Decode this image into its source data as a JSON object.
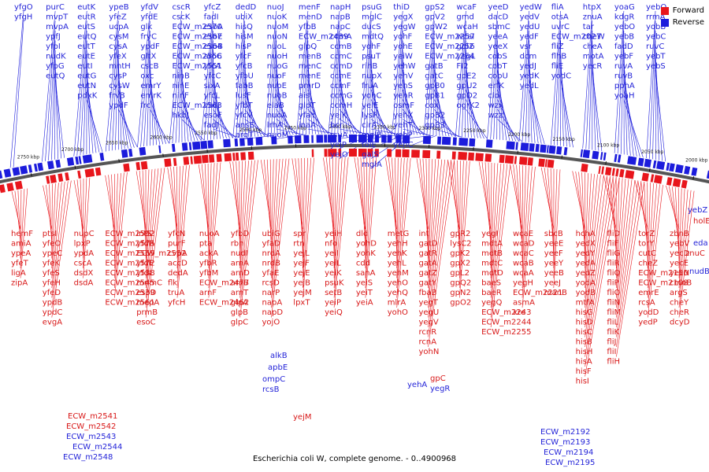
{
  "colors": {
    "forward": "#e8161c",
    "reverse": "#1c1cdc",
    "label_forward": "#d81818",
    "label_reverse": "#2424d8",
    "backbone": "#555555"
  },
  "legend": {
    "forward": "Forward",
    "reverse": "Reverse"
  },
  "caption": "Escherichia coli W, complete genome. - 0..4900968",
  "tick_labels": [
    "2750 kbp",
    "2700 kbp",
    "2650 kbp",
    "2600 kbp",
    "2550 kbp",
    "2500 kbp",
    "2450 kbp",
    "2400 kbp",
    "2350 kbp",
    "2300 kbp",
    "2250 kbp",
    "2200 kbp",
    "2150 kbp",
    "2100 kbp",
    "2050 kbp",
    "2000 kbp"
  ],
  "reverse_label_columns": [
    [
      "yfgO",
      "yfgH"
    ],
    [
      "purC",
      "mvpT",
      "mvpA",
      "ypfJ",
      "yfpI",
      "nudK",
      "yfpG",
      "eutQ"
    ],
    [
      "eutK",
      "eutR",
      "eutS",
      "eutQ",
      "eutT",
      "eutE",
      "eutI",
      "eutG",
      "eutN",
      "pdxK"
    ],
    [
      "ypeB",
      "yfeZ",
      "ucpA",
      "cysM",
      "cysA",
      "yfeX",
      "mntH",
      "cysP",
      "cysW",
      "frvB",
      "ypdF"
    ],
    [
      "yfdV",
      "yfdE",
      "glk",
      "fryC",
      "ypdF",
      "gltX",
      "cscB",
      "oxc",
      "emrY",
      "emrK",
      "frc"
    ],
    [
      "cscR",
      "cscK",
      "ECW_m2570",
      "ECW_m2567",
      "ECW_m2564",
      "ECW_m2556",
      "ECW_m2551",
      "ninB",
      "ninE",
      "ninF",
      "ECW_m2563",
      "hkbJ"
    ],
    [
      "yfcZ",
      "fadI",
      "esoA",
      "esoE",
      "esoB",
      "aroC",
      "yfcA",
      "yfcC",
      "sixA",
      "yfcL",
      "vacJ",
      "esoF",
      "fadJ"
    ],
    [
      "dedD",
      "ubiX",
      "hisQ",
      "hisM",
      "hisP",
      "yfcF",
      "yfcB",
      "yfbU",
      "fabB",
      "lusF",
      "yfbT",
      "yfcV",
      "ansE",
      "argT"
    ],
    [
      "nuoJ",
      "nuoK",
      "nuoM",
      "nuoN",
      "nuoL",
      "nuoH",
      "nuoG",
      "nuoF",
      "nuoE",
      "nuoB",
      "elaB",
      "nuoA",
      "lrhA",
      "nuoM"
    ],
    [
      "menF",
      "menD",
      "yfbB",
      "ECW_m2439",
      "glpQ",
      "menB",
      "menC",
      "menE",
      "pmrD",
      "ais",
      "glpT",
      "yfaY",
      "inaA"
    ],
    [
      "napH",
      "napB",
      "napC",
      "ccmA",
      "ccmB",
      "ccmC",
      "ccmD",
      "ccmE",
      "ccmF",
      "ccmG",
      "ccmH",
      "yejK",
      "bcr",
      "rsuA",
      "yejP",
      "yejO"
    ],
    [
      "psuG",
      "mglC",
      "ducS",
      "mdtQ",
      "yohF",
      "psuT",
      "rihB",
      "nupX",
      "fruA",
      "yohC",
      "yeiE",
      "lysP",
      "clrA",
      "mglB",
      "folE",
      "galS",
      "mglA"
    ],
    [
      "thiD",
      "yegX",
      "yegW",
      "yohF",
      "yohE",
      "yeiW",
      "yehW",
      "yehV",
      "yehS",
      "yehR",
      "osmF",
      "yehX",
      "yehT",
      "yehP",
      "yehC"
    ],
    [
      "gpS2",
      "gpV2",
      "gpW2",
      "ECW_m2257",
      "ECW_m2256",
      "ECW_m2254",
      "gatB",
      "gatC",
      "gp80",
      "gp81",
      "cox",
      "gpB2",
      "gpB3"
    ],
    [
      "wcaF",
      "gmd",
      "wcaH",
      "wcaI",
      "gpl2",
      "yegL",
      "FI2",
      "gpE2",
      "gpU2",
      "gpD2",
      "ogrK2"
    ],
    [
      "yeeD",
      "dacD",
      "sbmC",
      "yeeA",
      "yeeX",
      "cobS",
      "cobT",
      "cobU",
      "erfK",
      "cld",
      "wzx",
      "wzz"
    ],
    [
      "yedW",
      "yedV",
      "yedU",
      "yedF",
      "vsr",
      "dcm",
      "yedJ",
      "yedK",
      "yedL"
    ],
    [
      "fliA",
      "otsA",
      "uvrC",
      "ECW_m2027",
      "fliZ",
      "flhB",
      "fliE",
      "yodC"
    ],
    [
      "htpX",
      "znuA",
      "tar",
      "cheW",
      "cheA",
      "motA",
      "yecR"
    ],
    [
      "yoaG",
      "kdgR",
      "yebO",
      "yebB",
      "fadD",
      "yebF",
      "ruvA",
      "ruvB",
      "pphA",
      "yoaH"
    ],
    [
      "yebQ",
      "rrmA",
      "yobB",
      "yebC",
      "ruvC",
      "yebT",
      "yebS"
    ]
  ],
  "forward_label_columns": [
    [
      "hemF",
      "amiA",
      "ypeA",
      "yfeT",
      "ligA",
      "zipA"
    ],
    [
      "ptsI",
      "yfeO",
      "ypeC",
      "yfeK",
      "yfeS",
      "yfeH",
      "yfeD",
      "ypdB",
      "ypdC",
      "evgA"
    ],
    [
      "nupC",
      "lpxP",
      "ypdA",
      "cscA",
      "dsdX",
      "dsdA"
    ],
    [
      "ECW_m2592",
      "ECW_m2575",
      "ECW_m2569",
      "ECW_m2572",
      "ECW_m2538",
      "ECW_m2545",
      "ECW_m2539",
      "ECW_m2561"
    ],
    [
      "intS",
      "yfdR",
      "ECW_m2552",
      "yfdF",
      "yfdL",
      "mnmC",
      "esoD",
      "mepA",
      "prmB",
      "esoC"
    ],
    [
      "yfcN",
      "purF",
      "cvpA",
      "accD",
      "dedA",
      "flk",
      "truA",
      "yfcH"
    ],
    [
      "nuoA",
      "pta",
      "ackA",
      "yfbR",
      "yfbM",
      "ECW_m2477",
      "arnF",
      "ECW_m2462"
    ],
    [
      "yfbD",
      "rbn",
      "nudI",
      "arnA",
      "arnD",
      "arnB",
      "arnT",
      "glpA",
      "glpB",
      "glpC"
    ],
    [
      "ubiG",
      "yfaD",
      "nrdA",
      "nrdB",
      "yfaE",
      "rcsD",
      "narP",
      "napA",
      "napD",
      "yojO"
    ],
    [
      "spr",
      "rtn",
      "yejL",
      "yejF",
      "yejE",
      "yejB",
      "yejM",
      "lpxT"
    ],
    [
      "yeiH",
      "nfo",
      "yeiI",
      "yeiL",
      "yeiK",
      "psuK",
      "setB",
      "yeiP",
      "yeiQ"
    ],
    [
      "dld",
      "yohD",
      "yohK",
      "cdd",
      "sanA",
      "yeiS",
      "yeiT",
      "yeiA"
    ],
    [
      "metG",
      "yehH",
      "yehK",
      "yehL",
      "yehM",
      "yehO",
      "yehQ",
      "mlrA",
      "yohO"
    ],
    [
      "int",
      "gatD",
      "gatR",
      "gatA",
      "gatZ",
      "gatY",
      "fbaB",
      "yegT",
      "yegU",
      "yegV",
      "rcnR",
      "rcnA",
      "yohN"
    ],
    [
      "gpR2",
      "lysC2",
      "gpK2",
      "gpX2",
      "gpL2",
      "gpQ2",
      "gpN2",
      "gpO2"
    ],
    [
      "yegI",
      "mdtA",
      "mdtB",
      "mdtC",
      "mdtD",
      "baeS",
      "baeR",
      "yegQ",
      "ECW_m2243",
      "ECW_m2244",
      "ECW_m2255"
    ],
    [
      "wcaE",
      "wcaD",
      "wcaC",
      "wcaB",
      "wcaA",
      "yegH",
      "ECW_m2221",
      "asmA",
      "xre"
    ],
    [
      "sbcB",
      "yeeE",
      "yeeF",
      "yeeY",
      "yeeB",
      "yeeJ",
      "manB"
    ],
    [
      "hchA",
      "yedX",
      "yedY",
      "yedA",
      "yedZ",
      "yodA",
      "yodB",
      "mtfA",
      "hisG",
      "hisD",
      "hisC",
      "hisB",
      "hisH",
      "hisA",
      "hisF",
      "hisI"
    ],
    [
      "fliD",
      "fliF",
      "fliG",
      "fliR",
      "fliQ",
      "fliP",
      "fliO",
      "fliN",
      "fliM",
      "fliL",
      "fliK",
      "fliJ",
      "fliI",
      "fliH"
    ],
    [
      "torZ",
      "torY",
      "cutC",
      "cheZ",
      "ECW_m2150",
      "ECW_m2108",
      "emrE",
      "rcsA",
      "yodD",
      "yedP"
    ],
    [
      "zbnB",
      "yebV",
      "yecD",
      "yecE",
      "yecN",
      "cmoB",
      "argS",
      "cheY",
      "cheR",
      "dcyD"
    ]
  ],
  "overlay_labels": [
    {
      "text": "ECW_m2541",
      "c": "f"
    },
    {
      "text": "ECW_m2542",
      "c": "f"
    },
    {
      "text": "ECW_m2543",
      "c": "r"
    },
    {
      "text": "ECW_m2544",
      "c": "r"
    },
    {
      "text": "ECW_m2548",
      "c": "r"
    },
    {
      "text": "ompC",
      "c": "r"
    },
    {
      "text": "rcsB",
      "c": "r"
    },
    {
      "text": "alkB",
      "c": "r"
    },
    {
      "text": "apbE",
      "c": "r"
    },
    {
      "text": "yejM",
      "c": "f"
    },
    {
      "text": "gpC",
      "c": "f"
    },
    {
      "text": "yegR",
      "c": "r"
    },
    {
      "text": "yehA",
      "c": "r"
    },
    {
      "text": "ECW_m2192",
      "c": "r"
    },
    {
      "text": "ECW_m2193",
      "c": "r"
    },
    {
      "text": "ECW_m2194",
      "c": "r"
    },
    {
      "text": "ECW_m2195",
      "c": "r"
    },
    {
      "text": "yebZ",
      "c": "r"
    },
    {
      "text": "holE",
      "c": "f"
    },
    {
      "text": "eda",
      "c": "r"
    },
    {
      "text": "znuC",
      "c": "f"
    },
    {
      "text": "nudB",
      "c": "r"
    }
  ]
}
